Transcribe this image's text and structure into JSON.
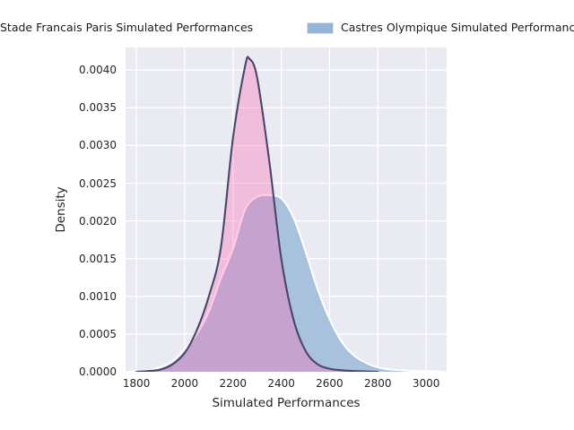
{
  "window": {
    "background": "#ffffff"
  },
  "legend": {
    "items": [
      {
        "label": "Stade Francais Paris Simulated Performances",
        "swatch_color": "#e79fc6",
        "swatch_border": "#f5d5e6"
      },
      {
        "label": "Castres Olympique Simulated Performances",
        "swatch_color": "#94b6d5",
        "swatch_border": "#d6e4f0"
      }
    ]
  },
  "colors": {
    "axes_background": "#eaeaf2",
    "gridline": "#ffffff",
    "tick_text": "#262626",
    "stade_line": "#474769",
    "stade_fill": "rgba(255,105,180,0.35)",
    "castres_line": "#ffffff",
    "castres_fill": "#a8c2dd"
  },
  "chart_data": {
    "type": "area",
    "subtype": "kde-density",
    "title": "",
    "xlabel": "Simulated Performances",
    "ylabel": "Density",
    "xlim": [
      1755,
      3085
    ],
    "ylim": [
      0,
      0.0043
    ],
    "grid": true,
    "legend_position": "top",
    "xticks": [
      1800,
      2000,
      2200,
      2400,
      2600,
      2800,
      3000
    ],
    "xticklabels": [
      "1800",
      "2000",
      "2200",
      "2400",
      "2600",
      "2800",
      "3000"
    ],
    "yticks": [
      0,
      0.0005,
      0.001,
      0.0015,
      0.002,
      0.0025,
      0.003,
      0.0035,
      0.004
    ],
    "yticklabels": [
      "0.0000",
      "0.0005",
      "0.0010",
      "0.0015",
      "0.0020",
      "0.0025",
      "0.0030",
      "0.0035",
      "0.0040"
    ],
    "series": [
      {
        "name": "Castres Olympique Simulated Performances",
        "fill": "#a8c2dd",
        "stroke": "#ffffff",
        "x": [
          1775,
          1850,
          1900,
          1950,
          2000,
          2050,
          2100,
          2150,
          2200,
          2250,
          2300,
          2350,
          2400,
          2450,
          2500,
          2550,
          2600,
          2650,
          2700,
          2750,
          2800,
          2850,
          2900,
          2950,
          3000,
          3060
        ],
        "y": [
          0,
          2e-05,
          6e-05,
          0.00014,
          0.0003,
          0.0005,
          0.0008,
          0.00124,
          0.00163,
          0.00215,
          0.00232,
          0.00234,
          0.0023,
          0.00205,
          0.0016,
          0.0011,
          0.0007,
          0.0004,
          0.00022,
          0.00012,
          6e-05,
          3e-05,
          2e-05,
          1e-05,
          1e-05,
          0
        ]
      },
      {
        "name": "Stade Francais Paris Simulated Performances",
        "fill": "rgba(255,105,180,0.35)",
        "stroke": "#474769",
        "x": [
          1800,
          1850,
          1900,
          1950,
          2000,
          2050,
          2100,
          2150,
          2200,
          2250,
          2268,
          2300,
          2350,
          2400,
          2450,
          2500,
          2550,
          2600,
          2650,
          2700,
          2800
        ],
        "y": [
          0,
          1e-05,
          3e-05,
          0.0001,
          0.00025,
          0.00055,
          0.001,
          0.00165,
          0.0031,
          0.00405,
          0.00415,
          0.0039,
          0.0028,
          0.0015,
          0.0007,
          0.00028,
          0.0001,
          4e-05,
          2e-05,
          1e-05,
          0
        ]
      }
    ]
  }
}
